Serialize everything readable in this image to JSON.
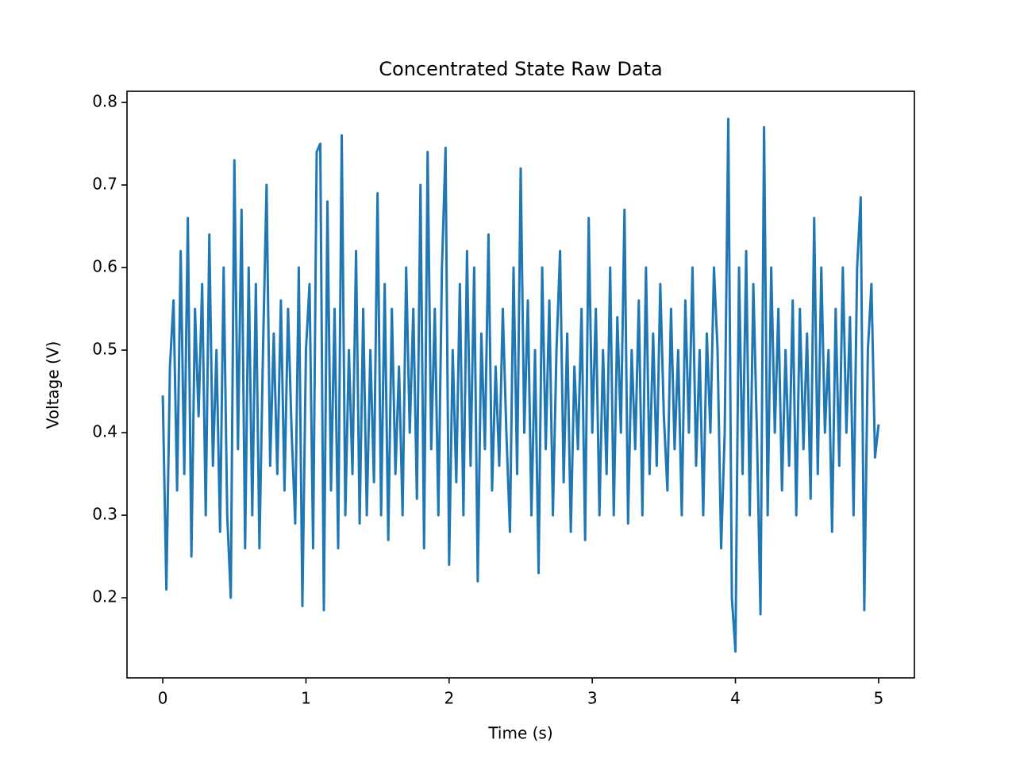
{
  "chart_data": {
    "type": "line",
    "title": "Concentrated State Raw Data",
    "xlabel": "Time (s)",
    "ylabel": "Voltage (V)",
    "color": "#1f77b4",
    "xlim": [
      -0.25,
      5.25
    ],
    "ylim": [
      0.103,
      0.8135
    ],
    "xticks": [
      0,
      1,
      2,
      3,
      4,
      5
    ],
    "yticks": [
      0.2,
      0.3,
      0.4,
      0.5,
      0.6,
      0.7,
      0.8
    ],
    "x": [
      0,
      0.025,
      0.05,
      0.075,
      0.1,
      0.125,
      0.15,
      0.175,
      0.2,
      0.225,
      0.25,
      0.275,
      0.3,
      0.325,
      0.35,
      0.375,
      0.4,
      0.425,
      0.45,
      0.475,
      0.5,
      0.525,
      0.55,
      0.575,
      0.6,
      0.625,
      0.65,
      0.675,
      0.7,
      0.725,
      0.75,
      0.775,
      0.8,
      0.825,
      0.85,
      0.875,
      0.9,
      0.925,
      0.95,
      0.975,
      1,
      1.025,
      1.05,
      1.075,
      1.1,
      1.125,
      1.15,
      1.175,
      1.2,
      1.225,
      1.25,
      1.275,
      1.3,
      1.325,
      1.35,
      1.375,
      1.4,
      1.425,
      1.45,
      1.475,
      1.5,
      1.525,
      1.55,
      1.575,
      1.6,
      1.625,
      1.65,
      1.675,
      1.7,
      1.725,
      1.75,
      1.775,
      1.8,
      1.825,
      1.85,
      1.875,
      1.9,
      1.925,
      1.95,
      1.975,
      2,
      2.025,
      2.05,
      2.075,
      2.1,
      2.125,
      2.15,
      2.175,
      2.2,
      2.225,
      2.25,
      2.275,
      2.3,
      2.325,
      2.35,
      2.375,
      2.4,
      2.425,
      2.45,
      2.475,
      2.5,
      2.525,
      2.55,
      2.575,
      2.6,
      2.625,
      2.65,
      2.675,
      2.7,
      2.725,
      2.75,
      2.775,
      2.8,
      2.825,
      2.85,
      2.875,
      2.9,
      2.925,
      2.95,
      2.975,
      3,
      3.025,
      3.05,
      3.075,
      3.1,
      3.125,
      3.15,
      3.175,
      3.2,
      3.225,
      3.25,
      3.275,
      3.3,
      3.325,
      3.35,
      3.375,
      3.4,
      3.425,
      3.45,
      3.475,
      3.5,
      3.525,
      3.55,
      3.575,
      3.6,
      3.625,
      3.65,
      3.675,
      3.7,
      3.725,
      3.75,
      3.775,
      3.8,
      3.825,
      3.85,
      3.875,
      3.9,
      3.925,
      3.95,
      3.975,
      4,
      4.025,
      4.05,
      4.075,
      4.1,
      4.125,
      4.15,
      4.175,
      4.2,
      4.225,
      4.25,
      4.275,
      4.3,
      4.325,
      4.35,
      4.375,
      4.4,
      4.425,
      4.45,
      4.475,
      4.5,
      4.525,
      4.55,
      4.575,
      4.6,
      4.625,
      4.65,
      4.675,
      4.7,
      4.725,
      4.75,
      4.775,
      4.8,
      4.825,
      4.85,
      4.875,
      4.9,
      4.925,
      4.95,
      4.975,
      5
    ],
    "values": [
      0.445,
      0.21,
      0.48,
      0.56,
      0.33,
      0.62,
      0.35,
      0.66,
      0.25,
      0.55,
      0.42,
      0.58,
      0.3,
      0.64,
      0.36,
      0.5,
      0.28,
      0.6,
      0.3,
      0.2,
      0.73,
      0.38,
      0.67,
      0.26,
      0.6,
      0.3,
      0.58,
      0.26,
      0.5,
      0.7,
      0.36,
      0.52,
      0.35,
      0.56,
      0.33,
      0.55,
      0.4,
      0.29,
      0.6,
      0.19,
      0.5,
      0.58,
      0.26,
      0.74,
      0.75,
      0.185,
      0.68,
      0.33,
      0.55,
      0.26,
      0.76,
      0.3,
      0.5,
      0.35,
      0.62,
      0.29,
      0.55,
      0.3,
      0.5,
      0.34,
      0.69,
      0.3,
      0.58,
      0.27,
      0.55,
      0.35,
      0.48,
      0.3,
      0.6,
      0.4,
      0.55,
      0.32,
      0.7,
      0.26,
      0.74,
      0.38,
      0.55,
      0.3,
      0.6,
      0.745,
      0.24,
      0.5,
      0.34,
      0.58,
      0.3,
      0.62,
      0.36,
      0.6,
      0.22,
      0.52,
      0.38,
      0.64,
      0.33,
      0.48,
      0.36,
      0.55,
      0.4,
      0.28,
      0.6,
      0.35,
      0.72,
      0.4,
      0.56,
      0.3,
      0.5,
      0.23,
      0.6,
      0.38,
      0.56,
      0.3,
      0.5,
      0.62,
      0.34,
      0.52,
      0.28,
      0.48,
      0.38,
      0.55,
      0.27,
      0.66,
      0.4,
      0.55,
      0.3,
      0.5,
      0.35,
      0.6,
      0.3,
      0.54,
      0.4,
      0.67,
      0.29,
      0.5,
      0.38,
      0.56,
      0.3,
      0.6,
      0.35,
      0.52,
      0.36,
      0.58,
      0.42,
      0.33,
      0.55,
      0.38,
      0.5,
      0.3,
      0.56,
      0.4,
      0.6,
      0.36,
      0.5,
      0.3,
      0.52,
      0.4,
      0.6,
      0.5,
      0.26,
      0.4,
      0.78,
      0.2,
      0.135,
      0.6,
      0.35,
      0.62,
      0.3,
      0.58,
      0.4,
      0.18,
      0.77,
      0.3,
      0.6,
      0.4,
      0.55,
      0.33,
      0.5,
      0.36,
      0.56,
      0.3,
      0.55,
      0.38,
      0.52,
      0.32,
      0.66,
      0.35,
      0.6,
      0.4,
      0.5,
      0.28,
      0.55,
      0.36,
      0.6,
      0.4,
      0.54,
      0.3,
      0.6,
      0.685,
      0.185,
      0.5,
      0.58,
      0.37,
      0.41
    ]
  }
}
